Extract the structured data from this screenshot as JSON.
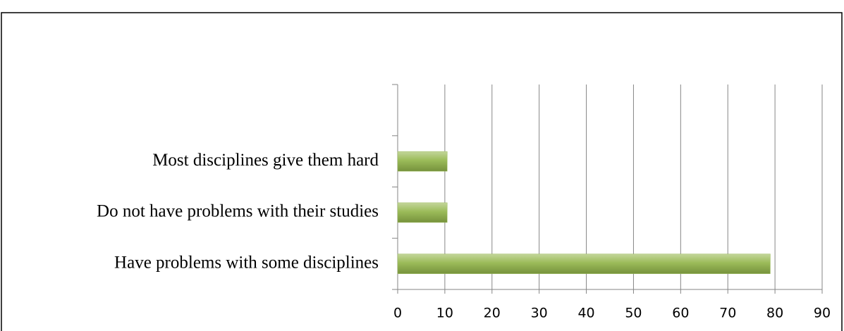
{
  "chart_data": {
    "type": "bar",
    "orientation": "horizontal",
    "categories": [
      "Have problems with some disciplines",
      "Do not have problems with their studies",
      "Most disciplines give them hard",
      null
    ],
    "values": [
      79,
      10.5,
      10.5,
      null
    ],
    "color": "#9bbb59",
    "xlim": [
      0,
      90
    ],
    "xticks": [
      0,
      10,
      20,
      30,
      40,
      50,
      60,
      70,
      80,
      90
    ],
    "grid": true
  }
}
